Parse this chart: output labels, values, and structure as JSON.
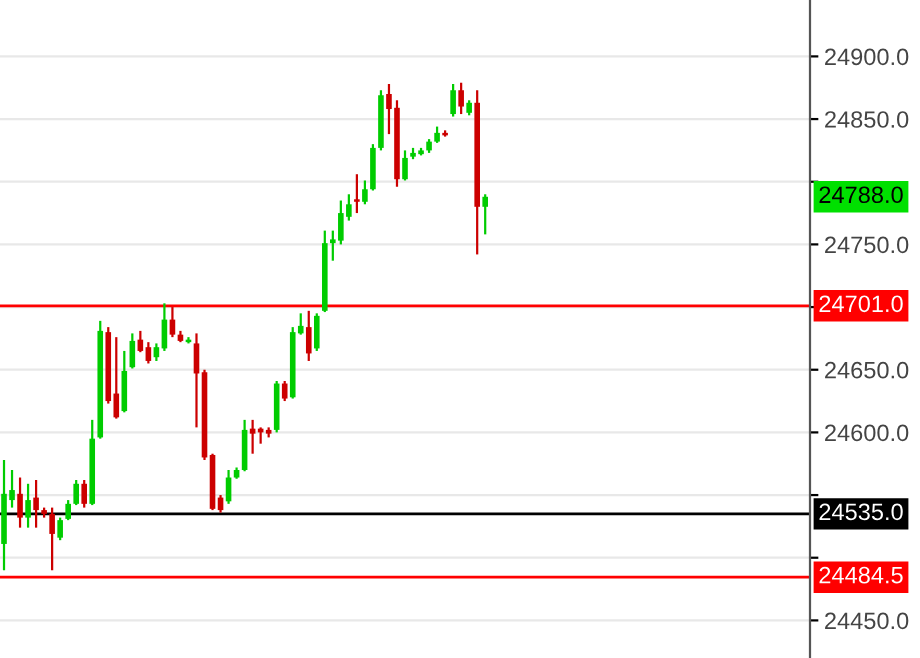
{
  "chart_data": {
    "type": "candlestick",
    "categories": [
      null,
      null,
      null,
      null,
      null,
      null,
      null,
      null,
      null,
      null,
      null,
      null,
      null,
      null,
      null,
      null,
      null,
      null,
      null,
      null,
      null,
      null,
      null,
      null,
      null,
      null,
      null,
      null,
      null,
      null,
      null,
      null,
      null,
      null,
      null,
      null,
      null,
      null,
      null,
      null,
      null,
      null,
      null,
      null,
      null,
      null,
      null,
      null,
      null,
      null,
      null,
      null,
      null,
      null,
      null,
      null,
      null,
      null,
      null,
      null,
      null,
      null,
      null,
      null,
      null,
      null,
      null,
      null,
      null,
      null,
      null,
      null,
      null,
      null,
      null,
      null,
      null,
      null,
      null,
      null,
      null,
      null,
      null,
      null,
      null,
      null,
      null,
      null,
      null,
      null,
      null,
      null,
      null,
      null,
      null,
      null,
      null,
      null,
      null,
      null,
      null
    ],
    "ohlc": [
      [
        24511,
        24578,
        24490,
        24551
      ],
      [
        24546,
        24570,
        24540,
        24554
      ],
      [
        24551,
        24564,
        24524,
        24532
      ],
      [
        24532,
        24559,
        24524,
        24546
      ],
      [
        24548,
        24562,
        24524,
        24538
      ],
      [
        24538,
        24540,
        24532,
        24535
      ],
      [
        24535,
        24540,
        24490,
        24519
      ],
      [
        24516,
        24532,
        24514,
        24530
      ],
      [
        24531,
        24546,
        24530,
        24543
      ],
      [
        24543,
        24562,
        24542,
        24559
      ],
      [
        24559,
        24562,
        24540,
        24543
      ],
      [
        24543,
        24610,
        24542,
        24595
      ],
      [
        24596,
        24689,
        24595,
        24681
      ],
      [
        24680,
        24684,
        24623,
        24625
      ],
      [
        24631,
        24676,
        24611,
        24612
      ],
      [
        24617,
        24665,
        24616,
        24649
      ],
      [
        24652,
        24679,
        24651,
        24673
      ],
      [
        24674,
        24681,
        24664,
        24665
      ],
      [
        24668,
        24672,
        24655,
        24657
      ],
      [
        24660,
        24671,
        24657,
        24668
      ],
      [
        24667,
        24703,
        24665,
        24690
      ],
      [
        24690,
        24700,
        24676,
        24678
      ],
      [
        24678,
        24681,
        24672,
        24673
      ],
      [
        24672,
        24676,
        24671,
        24674
      ],
      [
        24671,
        24679,
        24604,
        24647
      ],
      [
        24648,
        24650,
        24578,
        24580
      ],
      [
        24582,
        24583,
        24538,
        24539
      ],
      [
        24548,
        24550,
        24536,
        24538
      ],
      [
        24545,
        24570,
        24543,
        24564
      ],
      [
        24564,
        24572,
        24563,
        24570
      ],
      [
        24570,
        24610,
        24569,
        24602
      ],
      [
        24603,
        24610,
        24583,
        24599
      ],
      [
        24603,
        24604,
        24591,
        24600
      ],
      [
        24602,
        24604,
        24596,
        24599
      ],
      [
        24602,
        24641,
        24600,
        24639
      ],
      [
        24639,
        24641,
        24625,
        24627
      ],
      [
        24628,
        24684,
        24627,
        24680
      ],
      [
        24679,
        24695,
        24678,
        24685
      ],
      [
        24684,
        24697,
        24657,
        24663
      ],
      [
        24667,
        24695,
        24665,
        24693
      ],
      [
        24697,
        24761,
        24696,
        24751
      ],
      [
        24751,
        24761,
        24737,
        24754
      ],
      [
        24753,
        24785,
        24750,
        24775
      ],
      [
        24772,
        24790,
        24769,
        24782
      ],
      [
        24786,
        24806,
        24775,
        24784
      ],
      [
        24784,
        24801,
        24782,
        24794
      ],
      [
        24794,
        24830,
        24793,
        24827
      ],
      [
        24827,
        24873,
        24825,
        24869
      ],
      [
        24870,
        24878,
        24838,
        24858
      ],
      [
        24859,
        24865,
        24796,
        24802
      ],
      [
        24802,
        24825,
        24801,
        24819
      ],
      [
        24820,
        24827,
        24818,
        24823
      ],
      [
        24822,
        24827,
        24821,
        24825
      ],
      [
        24825,
        24834,
        24823,
        24832
      ],
      [
        24832,
        24844,
        24831,
        24839
      ],
      [
        24839,
        24841,
        24836,
        24837
      ],
      [
        24854,
        24878,
        24852,
        24873
      ],
      [
        24873,
        24879,
        24854,
        24860
      ],
      [
        24855,
        24865,
        24853,
        24863
      ],
      [
        24863,
        24873,
        24742,
        24780
      ],
      [
        24780,
        24790,
        24758,
        24788
      ],
      null,
      null,
      null,
      null,
      null,
      null,
      null,
      null,
      null,
      null,
      null,
      null,
      null,
      null,
      null,
      null,
      null,
      null,
      null,
      null,
      null,
      null,
      null,
      null,
      null,
      null,
      null,
      null,
      null,
      null,
      null,
      null,
      null,
      null,
      null,
      null,
      null,
      null,
      null,
      null
    ],
    "ylim": [
      24420,
      24945
    ],
    "yticks": [
      {
        "value": 24450,
        "label": "24450.0"
      },
      {
        "value": 24500,
        "label": null
      },
      {
        "value": 24550,
        "label": null
      },
      {
        "value": 24600,
        "label": "24600.0"
      },
      {
        "value": 24650,
        "label": "24650.0"
      },
      {
        "value": 24700,
        "label": null
      },
      {
        "value": 24750,
        "label": "24750.0"
      },
      {
        "value": 24800,
        "label": null
      },
      {
        "value": 24850,
        "label": "24850.0"
      },
      {
        "value": 24900,
        "label": "24900.0"
      }
    ],
    "tick_labels": "y",
    "grid": "y",
    "ref_lines": [
      {
        "axis": "y",
        "value": 24701,
        "label": "24701.0",
        "color": "#ff0000"
      },
      {
        "axis": "y",
        "value": 24535,
        "label": "24535.0",
        "color": "#000000"
      },
      {
        "axis": "y",
        "value": 24484.5,
        "label": "24484.5",
        "color": "#ff0000"
      }
    ],
    "annotations": [
      "24788.0"
    ]
  }
}
